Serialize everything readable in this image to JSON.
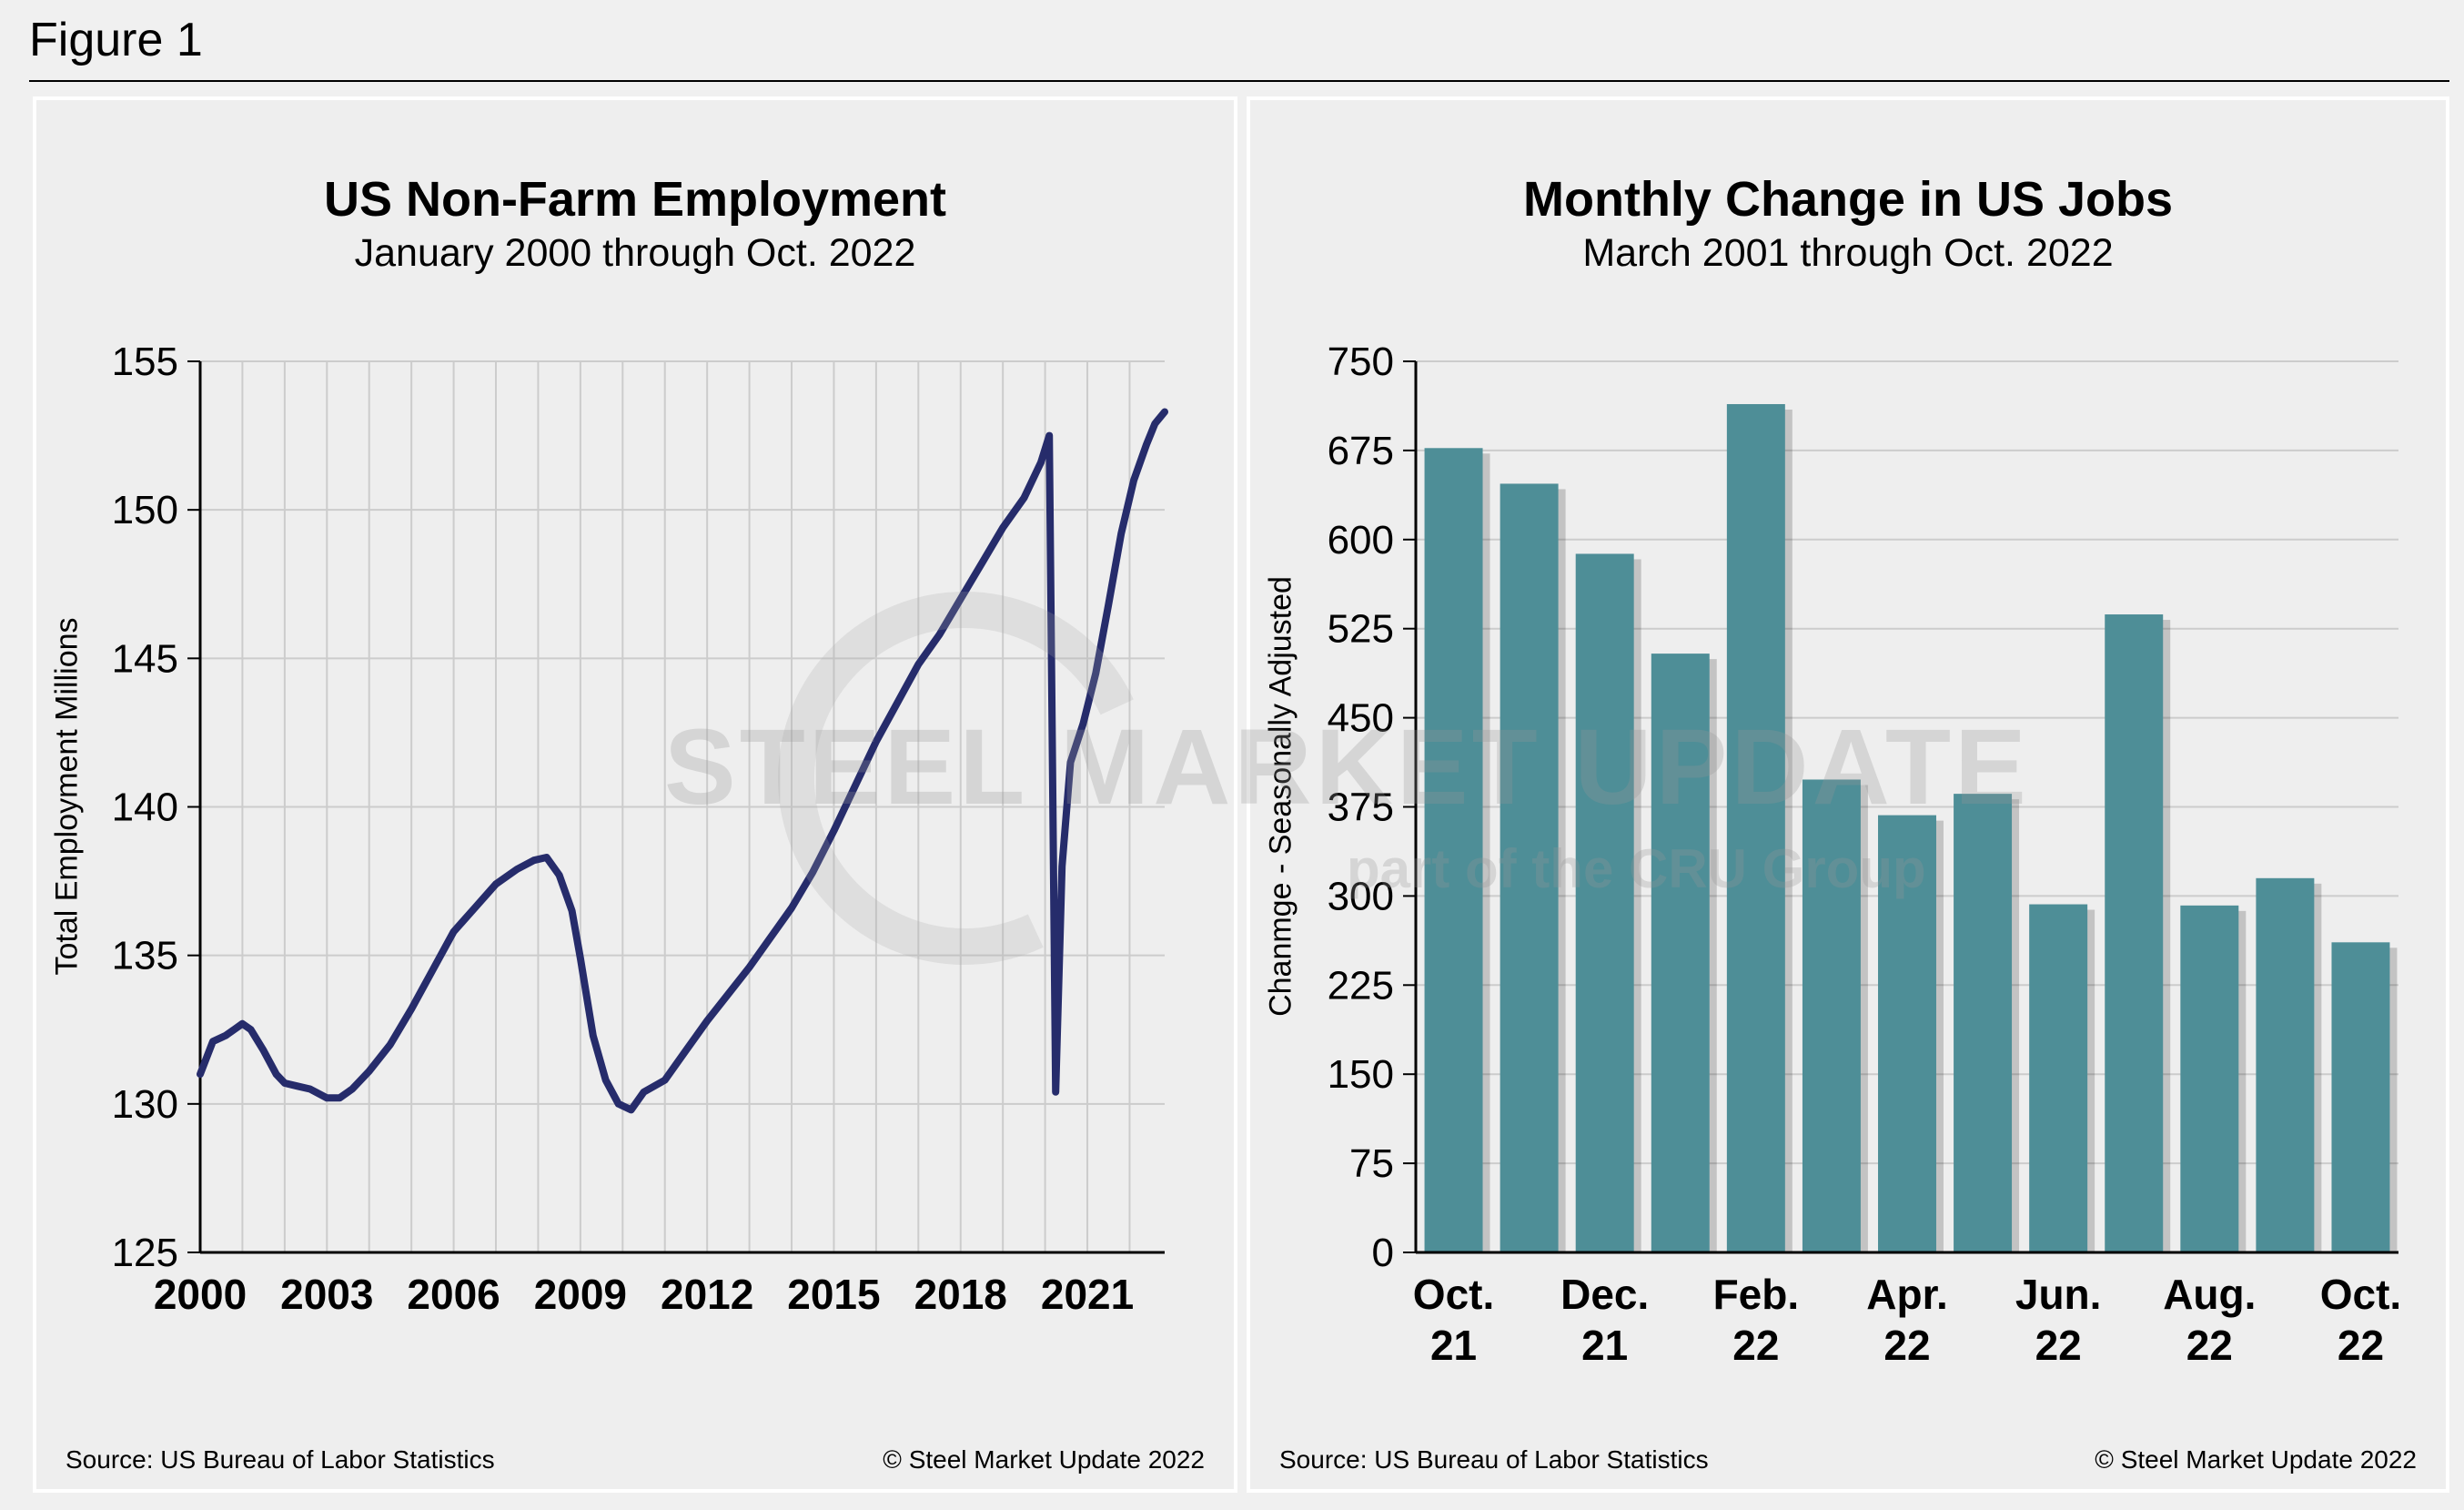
{
  "figure_title": "Figure 1",
  "watermark": {
    "text": "STEEL MARKET UPDATE",
    "subtext": "part of the CRU Group"
  },
  "colors": {
    "line": "#262c6b",
    "bar": "#4e8e97",
    "grid": "#cccccc"
  },
  "chart_data": [
    {
      "type": "line",
      "title": "US Non-Farm Employment",
      "subtitle": "January 2000 through Oct. 2022",
      "ylabel": "Total Employment Millions",
      "xlabel": "",
      "xlim": [
        2000,
        2022.83
      ],
      "ylim": [
        125,
        155
      ],
      "yticks": [
        125,
        130,
        135,
        140,
        145,
        150,
        155
      ],
      "xticks": [
        2000,
        2003,
        2006,
        2009,
        2012,
        2015,
        2018,
        2021
      ],
      "xtick_labels": [
        "2000",
        "2003",
        "2006",
        "2009",
        "2012",
        "2015",
        "2018",
        "2021"
      ],
      "grid": true,
      "series": [
        {
          "name": "Total Employment",
          "x": [
            2000.0,
            2000.3,
            2000.6,
            2001.0,
            2001.2,
            2001.5,
            2001.8,
            2002.0,
            2002.3,
            2002.6,
            2003.0,
            2003.3,
            2003.6,
            2004.0,
            2004.5,
            2005.0,
            2005.5,
            2006.0,
            2006.5,
            2007.0,
            2007.5,
            2007.9,
            2008.2,
            2008.5,
            2008.8,
            2009.0,
            2009.3,
            2009.6,
            2009.9,
            2010.2,
            2010.5,
            2011.0,
            2011.5,
            2012.0,
            2012.5,
            2013.0,
            2013.5,
            2014.0,
            2014.5,
            2015.0,
            2015.5,
            2016.0,
            2016.5,
            2017.0,
            2017.5,
            2018.0,
            2018.5,
            2019.0,
            2019.5,
            2019.9,
            2020.1,
            2020.25,
            2020.4,
            2020.6,
            2020.9,
            2021.2,
            2021.5,
            2021.8,
            2022.1,
            2022.4,
            2022.6,
            2022.83
          ],
          "y": [
            131.0,
            132.1,
            132.3,
            132.7,
            132.5,
            131.8,
            131.0,
            130.7,
            130.6,
            130.5,
            130.2,
            130.2,
            130.5,
            131.1,
            132.0,
            133.2,
            134.5,
            135.8,
            136.6,
            137.4,
            137.9,
            138.2,
            138.3,
            137.7,
            136.5,
            134.9,
            132.3,
            130.8,
            130.0,
            129.8,
            130.4,
            130.8,
            131.8,
            132.8,
            133.7,
            134.6,
            135.6,
            136.6,
            137.8,
            139.2,
            140.7,
            142.2,
            143.5,
            144.8,
            145.8,
            147.0,
            148.2,
            149.4,
            150.4,
            151.6,
            152.5,
            130.4,
            138.0,
            141.5,
            142.8,
            144.5,
            146.8,
            149.2,
            151.0,
            152.2,
            152.9,
            153.3
          ]
        }
      ],
      "source": "Source: US Bureau of Labor Statistics",
      "copyright": "© Steel Market Update 2022"
    },
    {
      "type": "bar",
      "title": "Monthly Change in US Jobs",
      "subtitle": "March 2001 through Oct. 2022",
      "ylabel": "Chanmge - Seasonally Adjusted",
      "xlabel": "",
      "ylim": [
        0,
        750
      ],
      "yticks": [
        0,
        75,
        150,
        225,
        300,
        375,
        450,
        525,
        600,
        675,
        750
      ],
      "grid": true,
      "categories": [
        "Oct.\n21",
        "Nov.\n21",
        "Dec.\n21",
        "Jan.\n22",
        "Feb.\n22",
        "Mar.\n22",
        "Apr.\n22",
        "May\n22",
        "Jun.\n22",
        "Jul.\n22",
        "Aug.\n22",
        "Sep.\n22",
        "Oct.\n22"
      ],
      "tick_labels": [
        {
          "index": 0,
          "line1": "Oct.",
          "line2": "21"
        },
        {
          "index": 2,
          "line1": "Dec.",
          "line2": "21"
        },
        {
          "index": 4,
          "line1": "Feb.",
          "line2": "22"
        },
        {
          "index": 6,
          "line1": "Apr.",
          "line2": "22"
        },
        {
          "index": 8,
          "line1": "Jun.",
          "line2": "22"
        },
        {
          "index": 10,
          "line1": "Aug.",
          "line2": "22"
        },
        {
          "index": 12,
          "line1": "Oct.",
          "line2": "22"
        }
      ],
      "values": [
        677,
        647,
        588,
        504,
        714,
        398,
        368,
        386,
        293,
        537,
        292,
        315,
        261
      ],
      "source": "Source: US Bureau of Labor Statistics",
      "copyright": "© Steel Market Update 2022"
    }
  ]
}
